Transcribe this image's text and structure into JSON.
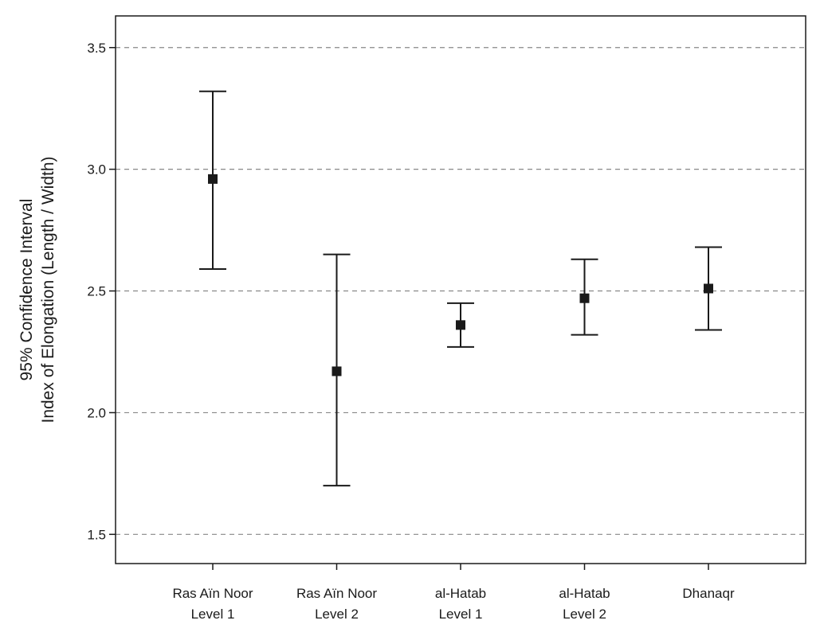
{
  "chart_data": {
    "type": "errorbar",
    "ylabel_line1": "95% Confidence Interval",
    "ylabel_line2": "Index of Elongation (Length / Width)",
    "ylim": [
      1.38,
      3.63
    ],
    "yticks": [
      1.5,
      2.0,
      2.5,
      3.0,
      3.5
    ],
    "ytick_labels": [
      "1.5",
      "2.0",
      "2.5",
      "3.0",
      "3.5"
    ],
    "grid": true,
    "categories": [
      {
        "line1": "Ras Aïn Noor",
        "line2": "Level 1"
      },
      {
        "line1": "Ras Aïn Noor",
        "line2": "Level 2"
      },
      {
        "line1": "al-Hatab",
        "line2": "Level 1"
      },
      {
        "line1": "al-Hatab",
        "line2": "Level 2"
      },
      {
        "line1": "Dhanaqr",
        "line2": ""
      }
    ],
    "means": [
      2.96,
      2.17,
      2.36,
      2.47,
      2.51
    ],
    "lower": [
      2.59,
      1.7,
      2.27,
      2.32,
      2.34
    ],
    "upper": [
      3.32,
      2.65,
      2.45,
      2.63,
      2.68
    ]
  }
}
